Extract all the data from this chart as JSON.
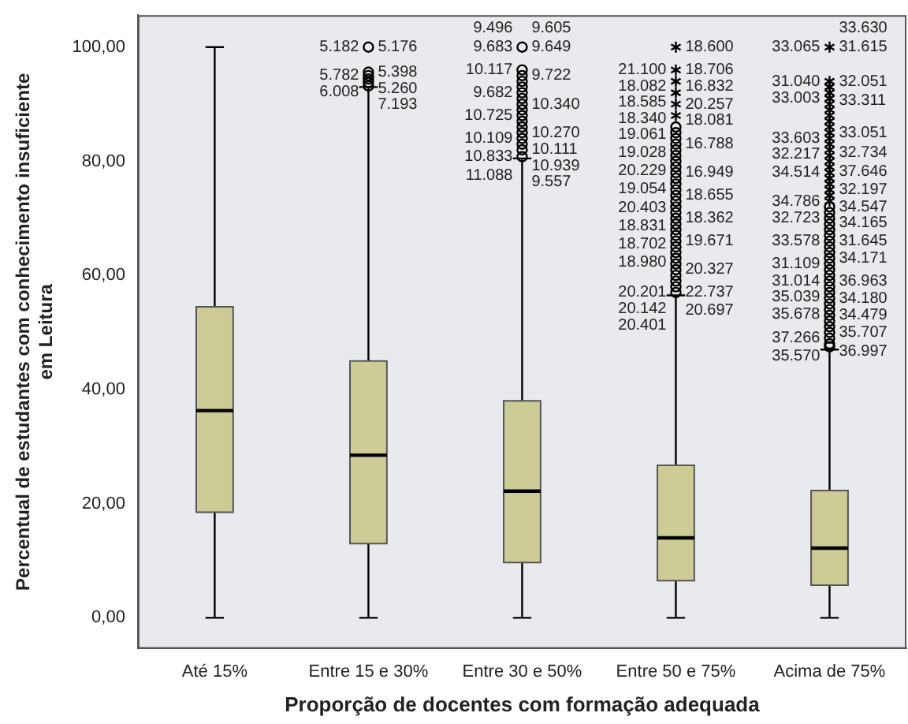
{
  "chart_data": {
    "type": "box",
    "xlabel": "Proporção de docentes com formação adequada",
    "ylabel": "Percentual de estudantes com conhecimento insuficiente\nem Leitura",
    "categories": [
      "Até 15%",
      "Entre 15 e 30%",
      "Entre 30 e 50%",
      "Entre 50 e 75%",
      "Acima de 75%"
    ],
    "ylim": [
      -5.4,
      105.6
    ],
    "yticks": [
      {
        "value": 0,
        "label": "0,00"
      },
      {
        "value": 20,
        "label": "20,00"
      },
      {
        "value": 40,
        "label": "40,00"
      },
      {
        "value": 60,
        "label": "60,00"
      },
      {
        "value": 80,
        "label": "80,00"
      },
      {
        "value": 100,
        "label": "100,00"
      }
    ],
    "grid": false,
    "legend": false,
    "series": [
      {
        "color": "#cdcb96",
        "boxes": [
          {
            "low": 0,
            "q1": 18.5,
            "median": 36.3,
            "q3": 54.5,
            "high": 100
          },
          {
            "low": 0,
            "q1": 13,
            "median": 28.5,
            "q3": 45,
            "high": 93
          },
          {
            "low": 0,
            "q1": 9.7,
            "median": 22.2,
            "q3": 38,
            "high": 80.5
          },
          {
            "low": 0,
            "q1": 6.5,
            "median": 14,
            "q3": 26.7,
            "high": 56.5
          },
          {
            "low": 0,
            "q1": 5.7,
            "median": 12.2,
            "q3": 22.3,
            "high": 47
          }
        ]
      },
      {
        "type": "scatter",
        "color": "#000000",
        "x": [
          "Entre 15 e 30%",
          "Entre 15 e 30%",
          "Entre 15 e 30%",
          "Entre 15 e 30%",
          "Entre 15 e 30%",
          "Entre 15 e 30%",
          "Entre 30 e 50%",
          "Entre 30 e 50%",
          "Entre 30 e 50%",
          "Entre 30 e 50%",
          "Entre 30 e 50%",
          "Entre 30 e 50%",
          "Entre 30 e 50%",
          "Entre 30 e 50%",
          "Entre 30 e 50%",
          "Entre 30 e 50%",
          "Entre 30 e 50%",
          "Entre 30 e 50%",
          "Entre 30 e 50%",
          "Entre 30 e 50%",
          "Entre 30 e 50%",
          "Entre 30 e 50%",
          "Entre 30 e 50%",
          "Entre 50 e 75%",
          "Entre 50 e 75%",
          "Entre 50 e 75%",
          "Entre 50 e 75%",
          "Entre 50 e 75%",
          "Entre 50 e 75%",
          "Entre 50 e 75%",
          "Entre 50 e 75%",
          "Entre 50 e 75%",
          "Entre 50 e 75%",
          "Entre 50 e 75%",
          "Entre 50 e 75%",
          "Entre 50 e 75%",
          "Entre 50 e 75%",
          "Entre 50 e 75%",
          "Entre 50 e 75%",
          "Entre 50 e 75%",
          "Entre 50 e 75%",
          "Entre 50 e 75%",
          "Entre 50 e 75%",
          "Entre 50 e 75%",
          "Entre 50 e 75%",
          "Entre 50 e 75%",
          "Entre 50 e 75%",
          "Entre 50 e 75%",
          "Entre 50 e 75%",
          "Entre 50 e 75%",
          "Entre 50 e 75%",
          "Entre 50 e 75%",
          "Entre 50 e 75%",
          "Entre 50 e 75%",
          "Entre 50 e 75%",
          "Entre 50 e 75%",
          "Entre 50 e 75%",
          "Entre 50 e 75%",
          "Entre 50 e 75%",
          "Acima de 75%",
          "Acima de 75%",
          "Acima de 75%",
          "Acima de 75%",
          "Acima de 75%",
          "Acima de 75%",
          "Acima de 75%",
          "Acima de 75%",
          "Acima de 75%",
          "Acima de 75%",
          "Acima de 75%",
          "Acima de 75%",
          "Acima de 75%",
          "Acima de 75%",
          "Acima de 75%",
          "Acima de 75%",
          "Acima de 75%",
          "Acima de 75%",
          "Acima de 75%",
          "Acima de 75%",
          "Acima de 75%",
          "Acima de 75%",
          "Acima de 75%",
          "Acima de 75%",
          "Acima de 75%",
          "Acima de 75%",
          "Acima de 75%",
          "Acima de 75%",
          "Acima de 75%",
          "Acima de 75%",
          "Acima de 75%",
          "Acima de 75%",
          "Acima de 75%",
          "Acima de 75%",
          "Acima de 75%",
          "Acima de 75%",
          "Acima de 75%",
          "Acima de 75%",
          "Acima de 75%",
          "Acima de 75%",
          "Acima de 75%",
          "Acima de 75%",
          "Acima de 75%",
          "Acima de 75%",
          "Acima de 75%",
          "Acima de 75%",
          "Acima de 75%",
          "Acima de 75%",
          "Acima de 75%"
        ],
        "values": [
          93.2,
          93.8,
          94.4,
          95,
          95.6,
          100,
          80.8,
          82,
          83,
          84,
          85,
          86,
          87,
          88,
          89,
          90,
          91,
          92,
          93,
          94,
          95,
          96,
          100,
          57,
          58,
          59,
          60,
          61,
          62,
          63,
          64,
          65,
          66,
          67,
          68,
          69,
          70,
          71,
          72,
          73,
          74,
          75,
          76,
          77,
          78,
          79,
          80,
          81,
          82,
          83,
          84,
          85,
          86,
          88,
          90,
          92,
          94,
          96,
          100,
          47.5,
          48,
          49,
          50,
          51,
          52,
          53,
          54,
          55,
          56,
          57,
          58,
          59,
          60,
          61,
          62,
          63,
          64,
          65,
          66,
          67,
          68,
          69,
          70,
          71,
          72,
          73,
          74,
          75,
          76,
          77,
          78,
          79,
          80,
          81,
          82,
          83,
          84,
          85,
          86,
          87,
          88,
          89,
          90,
          91,
          92,
          93,
          94,
          100
        ]
      }
    ],
    "annotations": [
      {
        "text": "5.176",
        "x": "Entre 15 e 30%",
        "y": 100
      },
      {
        "text": "5.182",
        "x": "Entre 15 e 30%",
        "y": 100
      },
      {
        "text": "5.398",
        "x": "Entre 15 e 30%",
        "y": 95.6
      },
      {
        "text": "5.782",
        "x": "Entre 15 e 30%",
        "y": 95
      },
      {
        "text": "5.260",
        "x": "Entre 15 e 30%",
        "y": 94.4
      },
      {
        "text": "6.008",
        "x": "Entre 15 e 30%",
        "y": 93.8
      },
      {
        "text": "7.193",
        "x": "Entre 15 e 30%",
        "y": 93.2
      },
      {
        "text": "9.649",
        "x": "Entre 30 e 50%",
        "y": 100
      },
      {
        "text": "9.683",
        "x": "Entre 30 e 50%",
        "y": 100
      },
      {
        "text": "9.605",
        "x": "Entre 30 e 50%",
        "y": 100
      },
      {
        "text": "9.496",
        "x": "Entre 30 e 50%",
        "y": 100
      },
      {
        "text": "9.722",
        "x": "Entre 30 e 50%",
        "y": 95
      },
      {
        "text": "10.117",
        "x": "Entre 30 e 50%",
        "y": 96
      },
      {
        "text": "10.340",
        "x": "Entre 30 e 50%",
        "y": 90
      },
      {
        "text": "9.682",
        "x": "Entre 30 e 50%",
        "y": 92
      },
      {
        "text": "10.270",
        "x": "Entre 30 e 50%",
        "y": 85
      },
      {
        "text": "10.725",
        "x": "Entre 30 e 50%",
        "y": 88
      },
      {
        "text": "10.111",
        "x": "Entre 30 e 50%",
        "y": 82
      },
      {
        "text": "10.109",
        "x": "Entre 30 e 50%",
        "y": 84
      },
      {
        "text": "10.833",
        "x": "Entre 30 e 50%",
        "y": 80.8
      },
      {
        "text": "10.939",
        "x": "Entre 30 e 50%",
        "y": 80.8
      },
      {
        "text": "11.088",
        "x": "Entre 30 e 50%",
        "y": 80.8
      },
      {
        "text": "9.557",
        "x": "Entre 30 e 50%",
        "y": 83
      },
      {
        "text": "18.600",
        "x": "Entre 50 e 75%",
        "y": 100
      },
      {
        "text": "18.706",
        "x": "Entre 50 e 75%",
        "y": 96
      },
      {
        "text": "21.100",
        "x": "Entre 50 e 75%",
        "y": 96
      },
      {
        "text": "16.832",
        "x": "Entre 50 e 75%",
        "y": 94
      },
      {
        "text": "18.082",
        "x": "Entre 50 e 75%",
        "y": 94
      },
      {
        "text": "20.257",
        "x": "Entre 50 e 75%",
        "y": 90
      },
      {
        "text": "18.585",
        "x": "Entre 50 e 75%",
        "y": 92
      },
      {
        "text": "18.081",
        "x": "Entre 50 e 75%",
        "y": 88
      },
      {
        "text": "18.340",
        "x": "Entre 50 e 75%",
        "y": 90
      },
      {
        "text": "16.788",
        "x": "Entre 50 e 75%",
        "y": 83
      },
      {
        "text": "19.061",
        "x": "Entre 50 e 75%",
        "y": 88
      },
      {
        "text": "16.949",
        "x": "Entre 50 e 75%",
        "y": 78
      },
      {
        "text": "19.028",
        "x": "Entre 50 e 75%",
        "y": 84
      },
      {
        "text": "18.655",
        "x": "Entre 50 e 75%",
        "y": 74
      },
      {
        "text": "20.229",
        "x": "Entre 50 e 75%",
        "y": 80
      },
      {
        "text": "18.362",
        "x": "Entre 50 e 75%",
        "y": 70
      },
      {
        "text": "19.054",
        "x": "Entre 50 e 75%",
        "y": 81
      },
      {
        "text": "19.671",
        "x": "Entre 50 e 75%",
        "y": 66
      },
      {
        "text": "20.403",
        "x": "Entre 50 e 75%",
        "y": 76
      },
      {
        "text": "20.327",
        "x": "Entre 50 e 75%",
        "y": 61
      },
      {
        "text": "18.831",
        "x": "Entre 50 e 75%",
        "y": 72
      },
      {
        "text": "22.737",
        "x": "Entre 50 e 75%",
        "y": 57
      },
      {
        "text": "18.702",
        "x": "Entre 50 e 75%",
        "y": 68
      },
      {
        "text": "20.201",
        "x": "Entre 50 e 75%",
        "y": 57
      },
      {
        "text": "18.980",
        "x": "Entre 50 e 75%",
        "y": 64
      },
      {
        "text": "20.697",
        "x": "Entre 50 e 75%",
        "y": 63
      },
      {
        "text": "20.142",
        "x": "Entre 50 e 75%",
        "y": 60
      },
      {
        "text": "20.401",
        "x": "Entre 50 e 75%",
        "y": 57
      },
      {
        "text": "31.615",
        "x": "Acima de 75%",
        "y": 100
      },
      {
        "text": "33.065",
        "x": "Acima de 75%",
        "y": 100
      },
      {
        "text": "33.630",
        "x": "Acima de 75%",
        "y": 100
      },
      {
        "text": "32.051",
        "x": "Acima de 75%",
        "y": 94
      },
      {
        "text": "31.040",
        "x": "Acima de 75%",
        "y": 94
      },
      {
        "text": "33.311",
        "x": "Acima de 75%",
        "y": 94
      },
      {
        "text": "33.003",
        "x": "Acima de 75%",
        "y": 91
      },
      {
        "text": "33.051",
        "x": "Acima de 75%",
        "y": 85
      },
      {
        "text": "33.603",
        "x": "Acima de 75%",
        "y": 84
      },
      {
        "text": "32.734",
        "x": "Acima de 75%",
        "y": 84
      },
      {
        "text": "32.217",
        "x": "Acima de 75%",
        "y": 82
      },
      {
        "text": "37.646",
        "x": "Acima de 75%",
        "y": 79
      },
      {
        "text": "34.514",
        "x": "Acima de 75%",
        "y": 78
      },
      {
        "text": "32.197",
        "x": "Acima de 75%",
        "y": 75
      },
      {
        "text": "34.786",
        "x": "Acima de 75%",
        "y": 73
      },
      {
        "text": "34.547",
        "x": "Acima de 75%",
        "y": 72
      },
      {
        "text": "32.723",
        "x": "Acima de 75%",
        "y": 70
      },
      {
        "text": "34.165",
        "x": "Acima de 75%",
        "y": 70
      },
      {
        "text": "31.645",
        "x": "Acima de 75%",
        "y": 66
      },
      {
        "text": "33.578",
        "x": "Acima de 75%",
        "y": 66
      },
      {
        "text": "34.171",
        "x": "Acima de 75%",
        "y": 63
      },
      {
        "text": "31.109",
        "x": "Acima de 75%",
        "y": 62
      },
      {
        "text": "36.963",
        "x": "Acima de 75%",
        "y": 59
      },
      {
        "text": "31.014",
        "x": "Acima de 75%",
        "y": 59
      },
      {
        "text": "34.180",
        "x": "Acima de 75%",
        "y": 56
      },
      {
        "text": "35.039",
        "x": "Acima de 75%",
        "y": 57
      },
      {
        "text": "34.479",
        "x": "Acima de 75%",
        "y": 53
      },
      {
        "text": "35.678",
        "x": "Acima de 75%",
        "y": 54
      },
      {
        "text": "35.707",
        "x": "Acima de 75%",
        "y": 50
      },
      {
        "text": "37.266",
        "x": "Acima de 75%",
        "y": 49
      },
      {
        "text": "36.997",
        "x": "Acima de 75%",
        "y": 47.5
      },
      {
        "text": "35.570",
        "x": "Acima de 75%",
        "y": 47.5
      }
    ]
  }
}
